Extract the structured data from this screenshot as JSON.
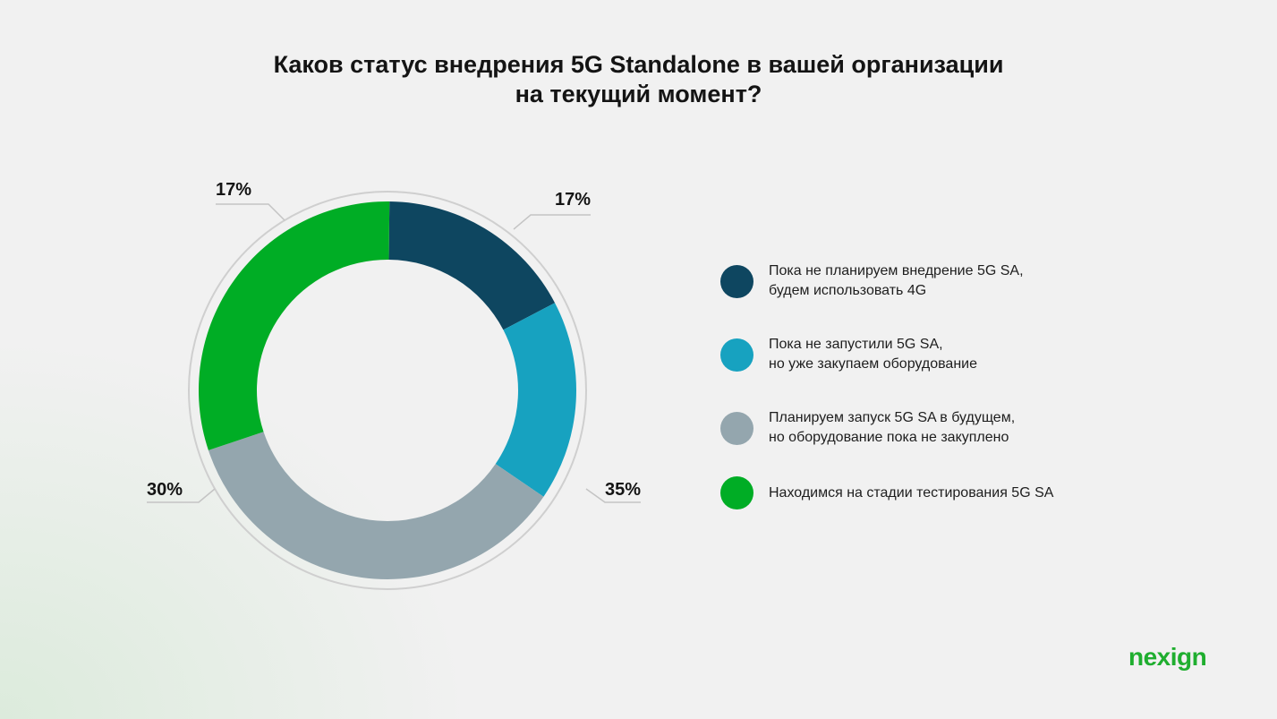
{
  "title": {
    "line1": "Каков статус внедрения 5G Standalone в вашей организации",
    "line2": "на текущий момент?"
  },
  "chart_data": {
    "type": "pie",
    "variant": "donut",
    "title": "Каков статус внедрения 5G Standalone в вашей организации на текущий момент?",
    "unit": "%",
    "legend_position": "right",
    "slices": [
      {
        "label": "Пока не планируем внедрение 5G SA, будем использовать 4G",
        "value": 17,
        "display": "17%",
        "color": "#0e4660"
      },
      {
        "label": "Пока не запустили 5G SA, но уже закупаем оборудование",
        "value": 17,
        "display": "17%",
        "color": "#17a2c0"
      },
      {
        "label": "Планируем запуск 5G SA в будущем, но оборудование пока не закуплено",
        "value": 35,
        "display": "35%",
        "color": "#94a6ae"
      },
      {
        "label": "Находимся на стадии тестирования 5G SA",
        "value": 30,
        "display": "30%",
        "color": "#00ad25"
      }
    ]
  },
  "legend": [
    {
      "line1": "Пока не планируем внедрение 5G SA,",
      "line2": "будем использовать 4G",
      "color": "#0e4660"
    },
    {
      "line1": "Пока не запустили 5G SA,",
      "line2": "но уже закупаем оборудование",
      "color": "#17a2c0"
    },
    {
      "line1": "Планируем запуск 5G SA в будущем,",
      "line2": "но оборудование пока не закуплено",
      "color": "#94a6ae"
    },
    {
      "line1": "Находимся на стадии тестирования 5G SA",
      "line2": "",
      "color": "#00ad25"
    }
  ],
  "logo": {
    "text": "nexign",
    "color": "#1fae2f"
  }
}
